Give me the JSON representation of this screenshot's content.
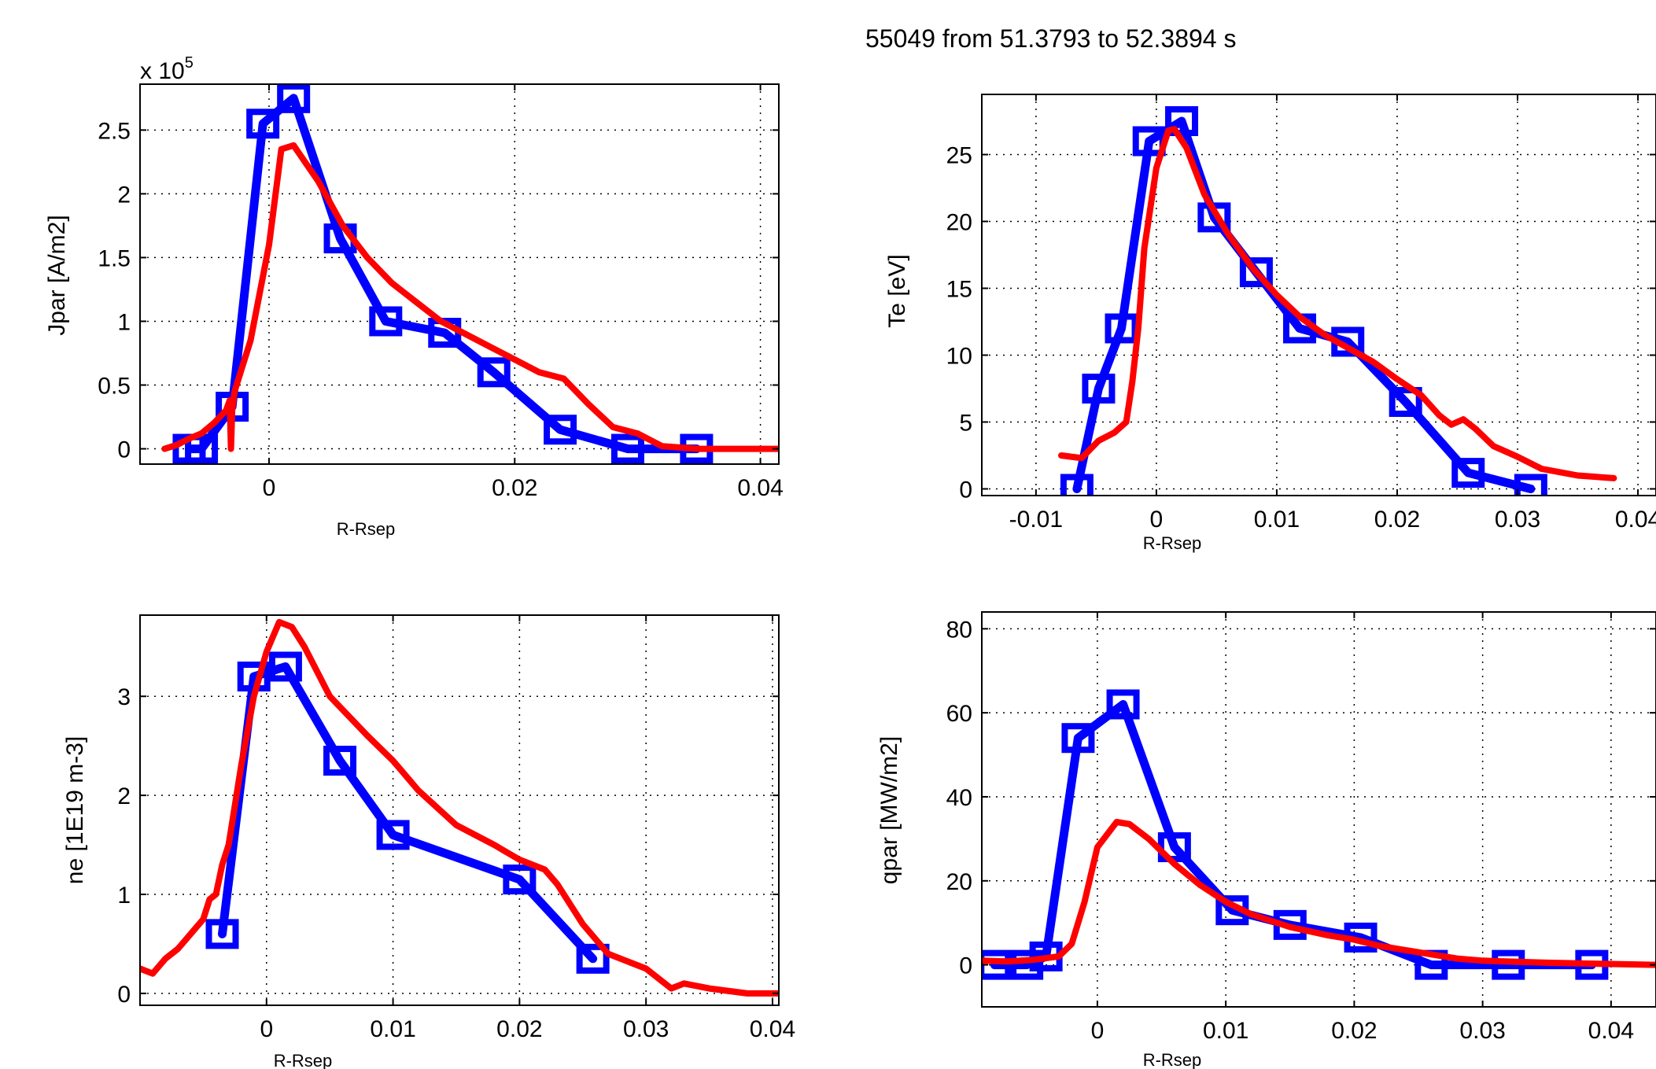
{
  "figure": {
    "title": "55049 from 51.3793 to 52.3894 s"
  },
  "chart_data": [
    {
      "id": "jpar",
      "type": "line",
      "xlabel": "R-Rsep",
      "ylabel": "Jpar [A/m2]",
      "exponent_label_base": "x 10",
      "exponent_label_power": "5",
      "xlim": [
        -0.0105,
        0.0415
      ],
      "ylim": [
        -0.12,
        2.86
      ],
      "xticks": [
        0,
        0.02,
        0.04
      ],
      "xtick_labels": [
        "0",
        "0.02",
        "0.04"
      ],
      "yticks": [
        0,
        0.5,
        1,
        1.5,
        2,
        2.5
      ],
      "ytick_labels": [
        "0",
        "0.5",
        "1",
        "1.5",
        "2",
        "2.5"
      ],
      "grid": true,
      "series": [
        {
          "color": "#0000ff",
          "marker": "square",
          "x": [
            -0.0065,
            -0.0055,
            -0.003,
            -0.0005,
            0.002,
            0.0058,
            0.0095,
            0.0143,
            0.0183,
            0.0237,
            0.0292,
            0.0348
          ],
          "y": [
            0.0,
            0.0,
            0.33,
            2.55,
            2.75,
            1.65,
            1.0,
            0.91,
            0.6,
            0.15,
            0.0,
            0.0
          ]
        },
        {
          "color": "#ff0000",
          "marker": "none",
          "x": [
            -0.0085,
            -0.0075,
            -0.0065,
            -0.0055,
            -0.0045,
            -0.0035,
            -0.0032,
            -0.0031,
            -0.003,
            -0.0028,
            -0.0015,
            0.0,
            0.001,
            0.002,
            0.004,
            0.006,
            0.008,
            0.01,
            0.012,
            0.014,
            0.016,
            0.018,
            0.02,
            0.022,
            0.024,
            0.026,
            0.028,
            0.03,
            0.032,
            0.035,
            0.038,
            0.0415
          ],
          "y": [
            0.0,
            0.03,
            0.08,
            0.12,
            0.2,
            0.3,
            0.38,
            0.0,
            0.3,
            0.45,
            0.85,
            1.6,
            2.35,
            2.38,
            2.1,
            1.75,
            1.5,
            1.3,
            1.15,
            1.0,
            0.9,
            0.8,
            0.7,
            0.6,
            0.55,
            0.35,
            0.17,
            0.12,
            0.02,
            0.0,
            0.0,
            0.0
          ]
        }
      ]
    },
    {
      "id": "te",
      "type": "line",
      "xlabel": "R-Rsep",
      "ylabel": "Te [eV]",
      "xlim": [
        -0.0145,
        0.0415
      ],
      "ylim": [
        -0.5,
        29.5
      ],
      "xticks": [
        -0.01,
        0,
        0.01,
        0.02,
        0.03,
        0.04
      ],
      "xtick_labels": [
        "-0.01",
        "0",
        "0.01",
        "0.02",
        "0.03",
        "0.04"
      ],
      "yticks": [
        0,
        5,
        10,
        15,
        20,
        25
      ],
      "ytick_labels": [
        "0",
        "5",
        "10",
        "15",
        "20",
        "25"
      ],
      "grid": true,
      "series": [
        {
          "color": "#0000ff",
          "marker": "square",
          "x": [
            -0.0066,
            -0.0048,
            -0.0029,
            -0.0006,
            0.0021,
            0.0048,
            0.0083,
            0.0119,
            0.0159,
            0.0207,
            0.0259,
            0.0311
          ],
          "y": [
            0.0,
            7.5,
            12.0,
            26.0,
            27.5,
            20.3,
            16.2,
            12.0,
            11.0,
            6.5,
            1.2,
            0.0
          ]
        },
        {
          "color": "#ff0000",
          "marker": "none",
          "x": [
            -0.0079,
            -0.0062,
            -0.0048,
            -0.0035,
            -0.0025,
            -0.002,
            -0.0015,
            -0.001,
            0.0,
            0.001,
            0.0015,
            0.0025,
            0.004,
            0.006,
            0.008,
            0.01,
            0.012,
            0.014,
            0.016,
            0.018,
            0.02,
            0.022,
            0.0235,
            0.0245,
            0.0255,
            0.0265,
            0.028,
            0.03,
            0.032,
            0.035,
            0.038
          ],
          "y": [
            2.5,
            2.3,
            3.6,
            4.2,
            5.0,
            8.0,
            12.0,
            18.0,
            24.0,
            26.8,
            26.9,
            25.5,
            22.0,
            19.0,
            16.5,
            14.5,
            12.8,
            11.5,
            10.5,
            9.5,
            8.2,
            7.0,
            5.5,
            4.8,
            5.2,
            4.5,
            3.2,
            2.4,
            1.5,
            1.0,
            0.8
          ]
        }
      ]
    },
    {
      "id": "ne",
      "type": "line",
      "xlabel": "R-Rsep",
      "ylabel": "ne [1E19 m-3]",
      "xlim": [
        -0.01,
        0.0405
      ],
      "ylim": [
        -0.12,
        3.82
      ],
      "xticks": [
        0,
        0.01,
        0.02,
        0.03,
        0.04
      ],
      "xtick_labels": [
        "0",
        "0.01",
        "0.02",
        "0.03",
        "0.04"
      ],
      "yticks": [
        0,
        1,
        2,
        3
      ],
      "ytick_labels": [
        "0",
        "1",
        "2",
        "3"
      ],
      "grid": true,
      "series": [
        {
          "color": "#0000ff",
          "marker": "square",
          "x": [
            -0.0035,
            -0.001,
            0.0015,
            0.0058,
            0.01,
            0.02,
            0.0258
          ],
          "y": [
            0.6,
            3.2,
            3.3,
            2.35,
            1.6,
            1.15,
            0.35
          ]
        },
        {
          "color": "#ff0000",
          "marker": "none",
          "x": [
            -0.01,
            -0.009,
            -0.008,
            -0.007,
            -0.006,
            -0.005,
            -0.0045,
            -0.004,
            -0.0035,
            -0.003,
            -0.002,
            -0.001,
            0.0,
            0.001,
            0.002,
            0.003,
            0.005,
            0.008,
            0.01,
            0.012,
            0.015,
            0.018,
            0.02,
            0.022,
            0.023,
            0.024,
            0.025,
            0.026,
            0.027,
            0.028,
            0.029,
            0.03,
            0.031,
            0.032,
            0.033,
            0.035,
            0.038,
            0.0405
          ],
          "y": [
            0.25,
            0.2,
            0.35,
            0.45,
            0.6,
            0.75,
            0.95,
            1.0,
            1.3,
            1.5,
            2.3,
            3.0,
            3.45,
            3.75,
            3.7,
            3.5,
            3.0,
            2.6,
            2.35,
            2.05,
            1.7,
            1.5,
            1.35,
            1.25,
            1.1,
            0.9,
            0.7,
            0.55,
            0.4,
            0.35,
            0.3,
            0.25,
            0.15,
            0.05,
            0.1,
            0.05,
            0.0,
            0.0
          ]
        }
      ]
    },
    {
      "id": "qpar",
      "type": "line",
      "xlabel": "R-Rsep",
      "ylabel": "qpar [MW/m2]",
      "xlim": [
        -0.009,
        0.0435
      ],
      "ylim": [
        -10,
        84
      ],
      "xticks": [
        0,
        0.01,
        0.02,
        0.03,
        0.04
      ],
      "xtick_labels": [
        "0",
        "0.01",
        "0.02",
        "0.03",
        "0.04"
      ],
      "yticks": [
        0,
        20,
        40,
        60,
        80
      ],
      "ytick_labels": [
        "0",
        "20",
        "40",
        "60",
        "80"
      ],
      "grid": true,
      "series": [
        {
          "color": "#0000ff",
          "marker": "square",
          "x": [
            -0.008,
            -0.0055,
            -0.004,
            -0.0015,
            0.002,
            0.006,
            0.0105,
            0.015,
            0.0205,
            0.026,
            0.032,
            0.0385
          ],
          "y": [
            0.0,
            0.0,
            2.0,
            54.0,
            62.0,
            28.0,
            13.0,
            9.5,
            6.5,
            0.0,
            0.0,
            0.0
          ]
        },
        {
          "color": "#ff0000",
          "marker": "none",
          "x": [
            -0.009,
            -0.007,
            -0.005,
            -0.003,
            -0.002,
            -0.001,
            0.0,
            0.0015,
            0.0025,
            0.004,
            0.006,
            0.008,
            0.01,
            0.012,
            0.015,
            0.018,
            0.02,
            0.022,
            0.025,
            0.028,
            0.03,
            0.035,
            0.04,
            0.0435
          ],
          "y": [
            1.0,
            0.8,
            1.2,
            2.0,
            5.0,
            15.0,
            28.0,
            34.0,
            33.5,
            30.0,
            24.0,
            19.0,
            15.0,
            12.0,
            9.0,
            7.0,
            6.0,
            4.5,
            3.0,
            1.5,
            1.0,
            0.5,
            0.2,
            0.0
          ]
        }
      ]
    }
  ]
}
